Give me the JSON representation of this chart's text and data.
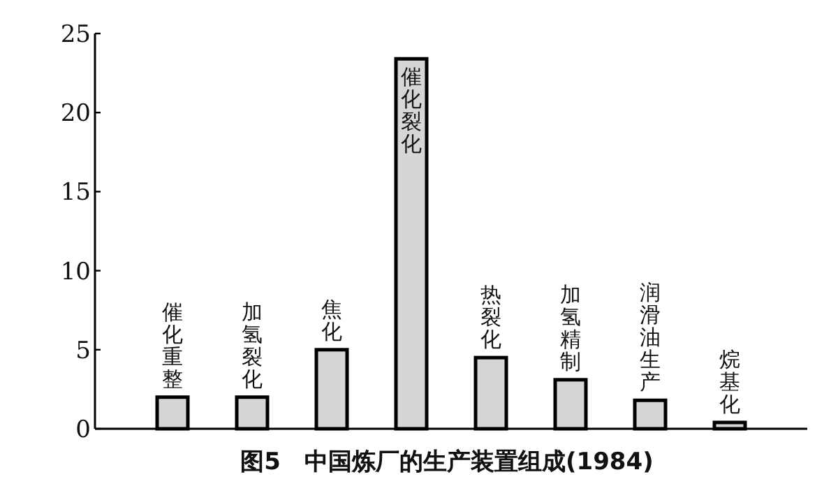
{
  "chart_data": {
    "type": "bar",
    "title": "图5　中国炼厂的生产装置组成(1984)",
    "categories": [
      "催化重整",
      "加氢裂化",
      "焦化",
      "催化裂化",
      "热裂化",
      "加氢精制",
      "润滑油生产",
      "烷基化"
    ],
    "values": [
      2.0,
      2.0,
      5.0,
      23.4,
      4.5,
      3.1,
      1.8,
      0.4
    ],
    "color": "#d6d6d6",
    "ylim": [
      0,
      25
    ],
    "yticks": [
      0,
      5,
      10,
      15,
      20,
      25
    ]
  }
}
